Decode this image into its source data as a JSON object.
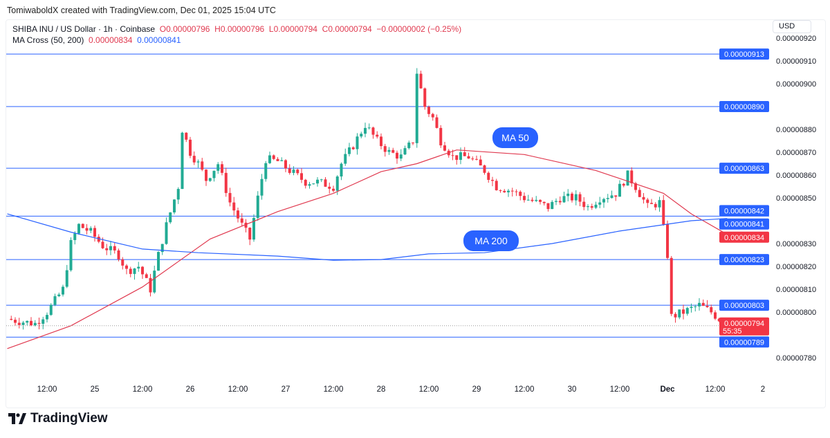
{
  "credit": "TomiwaboldX created with TradingView.com, Dec 01, 2025 15:04 UTC",
  "legend": {
    "symbol": "SHIBA INU / US Dollar · 1h · Coinbase",
    "o": "O0.00000796",
    "h": "H0.00000796",
    "l": "L0.00000794",
    "c": "C0.00000794",
    "chg": "−0.00000002 (−0.25%)",
    "ma_name": "MA Cross (50, 200)",
    "ma50": "0.00000834",
    "ma200": "0.00000841"
  },
  "currency": "USD",
  "logo": "TradingView",
  "colors": {
    "up": "#22ab94",
    "down": "#f23645",
    "ma50": "#e0394f",
    "ma200": "#2962ff",
    "level": "#2962ff"
  },
  "chart_data": {
    "type": "candlestick",
    "price_unit": "1e-8 USD",
    "ylim": [
      7.76e-06,
      9.24e-06
    ],
    "y_ticks": [
      "0.00000920",
      "0.00000910",
      "0.00000900",
      "0.00000880",
      "0.00000870",
      "0.00000860",
      "0.00000850",
      "0.00000830",
      "0.00000820",
      "0.00000810",
      "0.00000800",
      "0.00000780"
    ],
    "x_ticks": [
      "12:00",
      "25",
      "12:00",
      "26",
      "12:00",
      "27",
      "12:00",
      "28",
      "12:00",
      "29",
      "12:00",
      "30",
      "12:00",
      "Dec",
      "12:00",
      "2"
    ],
    "approx_close_path": [
      [
        "11-24 02:00",
        797
      ],
      [
        "11-24 05:00",
        796
      ],
      [
        "11-24 09:00",
        795
      ],
      [
        "11-24 12:00",
        800
      ],
      [
        "11-24 16:00",
        810
      ],
      [
        "11-24 18:00",
        830
      ],
      [
        "11-24 20:00",
        838
      ],
      [
        "11-24 23:00",
        835
      ],
      [
        "11-25 02:00",
        829
      ],
      [
        "11-25 06:00",
        825
      ],
      [
        "11-25 08:00",
        818
      ],
      [
        "11-25 11:00",
        820
      ],
      [
        "11-25 14:00",
        810
      ],
      [
        "11-25 16:00",
        825
      ],
      [
        "11-25 18:00",
        838
      ],
      [
        "11-25 21:00",
        855
      ],
      [
        "11-25 22:00",
        880
      ],
      [
        "11-26 00:00",
        870
      ],
      [
        "11-26 02:00",
        865
      ],
      [
        "11-26 04:00",
        858
      ],
      [
        "11-26 07:00",
        865
      ],
      [
        "11-26 10:00",
        848
      ],
      [
        "11-26 13:00",
        838
      ],
      [
        "11-26 15:00",
        832
      ],
      [
        "11-26 17:00",
        850
      ],
      [
        "11-26 19:00",
        867
      ],
      [
        "11-26 22:00",
        866
      ],
      [
        "11-27 01:00",
        862
      ],
      [
        "11-27 05:00",
        857
      ],
      [
        "11-27 08:00",
        857
      ],
      [
        "11-27 12:00",
        855
      ],
      [
        "11-27 14:00",
        865
      ],
      [
        "11-27 17:00",
        873
      ],
      [
        "11-27 20:00",
        882
      ],
      [
        "11-27 23:00",
        875
      ],
      [
        "11-28 02:00",
        870
      ],
      [
        "11-28 05:00",
        868
      ],
      [
        "11-28 08:00",
        875
      ],
      [
        "11-28 09:00",
        905
      ],
      [
        "11-28 11:00",
        890
      ],
      [
        "11-28 13:00",
        885
      ],
      [
        "11-28 15:00",
        875
      ],
      [
        "11-28 18:00",
        868
      ],
      [
        "11-28 22:00",
        868
      ],
      [
        "11-29 02:00",
        862
      ],
      [
        "11-29 05:00",
        855
      ],
      [
        "11-29 09:00",
        853
      ],
      [
        "11-29 12:00",
        850
      ],
      [
        "11-29 18:00",
        846
      ],
      [
        "11-29 21:00",
        850
      ],
      [
        "11-30 01:00",
        850
      ],
      [
        "11-30 04:00",
        846
      ],
      [
        "11-30 07:00",
        850
      ],
      [
        "11-30 11:00",
        852
      ],
      [
        "11-30 14:00",
        860
      ],
      [
        "11-30 16:00",
        855
      ],
      [
        "11-30 19:00",
        846
      ],
      [
        "11-30 22:00",
        848
      ],
      [
        "12-01 00:00",
        825
      ],
      [
        "12-01 01:00",
        798
      ],
      [
        "12-01 04:00",
        800
      ],
      [
        "12-01 08:00",
        803
      ],
      [
        "12-01 11:00",
        800
      ],
      [
        "12-01 15:00",
        794
      ]
    ],
    "ma50": {
      "name": "MA 50",
      "points": [
        [
          "11-24 02:00",
          784
        ],
        [
          "11-24 18:00",
          794
        ],
        [
          "11-25 12:00",
          811
        ],
        [
          "11-26 05:00",
          832
        ],
        [
          "11-26 22:00",
          844
        ],
        [
          "11-27 12:00",
          852
        ],
        [
          "11-28 00:00",
          861.5
        ],
        [
          "11-28 09:00",
          865
        ],
        [
          "11-28 19:00",
          871
        ],
        [
          "11-29 12:00",
          869
        ],
        [
          "11-30 06:00",
          862
        ],
        [
          "11-30 23:00",
          852
        ],
        [
          "12-01 06:00",
          843
        ],
        [
          "12-01 15:00",
          834
        ]
      ]
    },
    "ma200": {
      "name": "MA 200",
      "points": [
        [
          "11-24 02:00",
          843
        ],
        [
          "11-24 18:00",
          835
        ],
        [
          "11-25 12:00",
          827.6
        ],
        [
          "11-26 02:00",
          826
        ],
        [
          "11-26 22:00",
          824.5
        ],
        [
          "11-27 12:00",
          822.7
        ],
        [
          "11-28 00:00",
          823
        ],
        [
          "11-28 12:00",
          825.5
        ],
        [
          "11-29 02:00",
          826
        ],
        [
          "11-29 19:00",
          830
        ],
        [
          "11-30 12:00",
          835.5
        ],
        [
          "12-01 06:00",
          840
        ],
        [
          "12-01 15:00",
          841
        ]
      ]
    },
    "levels": [
      "0.00000913",
      "0.00000890",
      "0.00000863",
      "0.00000842",
      "0.00000823",
      "0.00000803",
      "0.00000789"
    ],
    "extra_labels": {
      "ma200_value": "0.00000841",
      "ma50_value": "0.00000834",
      "last_price": "0.00000794",
      "countdown": "55:35"
    }
  }
}
